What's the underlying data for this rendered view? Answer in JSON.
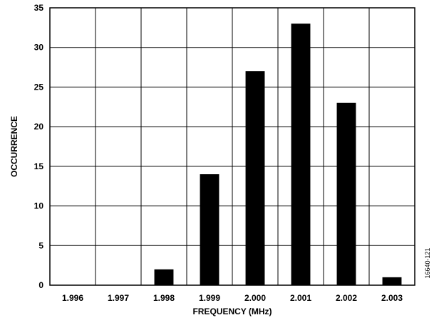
{
  "chart_data": {
    "type": "bar",
    "categories": [
      "1.996",
      "1.997",
      "1.998",
      "1.999",
      "2.000",
      "2.001",
      "2.002",
      "2.003"
    ],
    "values": [
      0,
      0,
      2,
      14,
      27,
      33,
      23,
      1
    ],
    "xlabel": "FREQUENCY (MHz)",
    "ylabel": "OCCURRENCE",
    "ylim": [
      0,
      35
    ],
    "yticks": [
      0,
      5,
      10,
      15,
      20,
      25,
      30,
      35
    ],
    "grid": true,
    "bar_color": "#000000"
  },
  "figure_id": "16640-121"
}
